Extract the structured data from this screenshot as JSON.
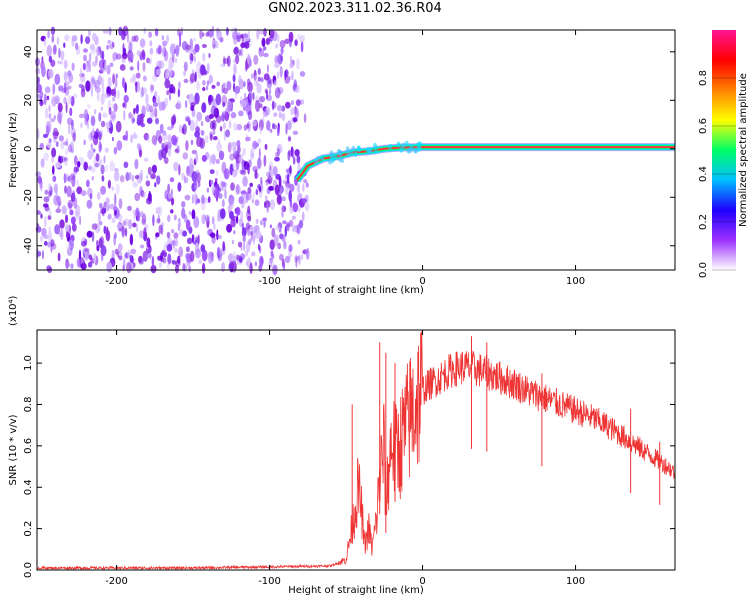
{
  "title": "GN02.2023.311.02.36.R04",
  "chart_data": [
    {
      "type": "heatmap",
      "panel": "spectrogram",
      "xlabel": "Height of straight line (km)",
      "ylabel": "Frequency (Hz)",
      "xlim": [
        -252,
        165
      ],
      "ylim": [
        -50,
        49
      ],
      "xticks": [
        -200,
        -100,
        0,
        100
      ],
      "yticks": [
        -40,
        -20,
        0,
        20,
        40
      ],
      "colorbar": {
        "label": "Normalized spectral amplitude",
        "range": [
          0,
          1
        ],
        "ticks": [
          "0.0",
          "0.2",
          "0.4",
          "0.6",
          "0.8"
        ],
        "colors": [
          "#ffffff",
          "#9b30ff",
          "#1e00ff",
          "#00bfff",
          "#00ff66",
          "#ffff00",
          "#ff8000",
          "#ff0000",
          "#ff1493"
        ]
      },
      "noise_region_x": [
        -252,
        -80
      ],
      "trace": {
        "x": [
          -82,
          -75,
          -65,
          -55,
          -45,
          -35,
          -25,
          -15,
          -5,
          0,
          50,
          100,
          165
        ],
        "y": [
          -13,
          -7,
          -4,
          -3,
          -1.5,
          -1,
          0,
          0.5,
          0.6,
          0.7,
          0.7,
          0.7,
          0.7
        ]
      }
    },
    {
      "type": "line",
      "panel": "snr",
      "xlabel": "Height of straight line (km)",
      "ylabel": "SNR (10 * v/v)",
      "y_scale_label": "(x10⁴)",
      "xlim": [
        -252,
        165
      ],
      "ylim": [
        0,
        1.16
      ],
      "xticks": [
        -200,
        -100,
        0,
        100
      ],
      "yticks": [
        "0.0",
        "0.2",
        "0.4",
        "0.6",
        "0.8",
        "1.0"
      ],
      "series": [
        {
          "color": "#ee3333",
          "x": [
            -252,
            -200,
            -150,
            -100,
            -60,
            -50,
            -45,
            -42,
            -40,
            -38,
            -35,
            -33,
            -30,
            -28,
            -25,
            -24,
            -22,
            -20,
            -18,
            -15,
            -10,
            -5,
            0,
            5,
            10,
            15,
            20,
            25,
            30,
            35,
            40,
            50,
            60,
            70,
            80,
            90,
            100,
            110,
            120,
            130,
            140,
            150,
            160,
            165
          ],
          "y": [
            0.01,
            0.01,
            0.01,
            0.015,
            0.02,
            0.05,
            0.25,
            0.4,
            0.3,
            0.12,
            0.2,
            0.1,
            0.25,
            0.45,
            0.6,
            0.3,
            0.5,
            0.65,
            0.55,
            0.6,
            0.7,
            0.8,
            0.87,
            0.9,
            0.92,
            0.95,
            0.97,
            0.98,
            0.98,
            0.97,
            0.96,
            0.93,
            0.9,
            0.86,
            0.83,
            0.8,
            0.77,
            0.74,
            0.7,
            0.65,
            0.6,
            0.55,
            0.5,
            0.47
          ]
        }
      ],
      "spikes": [
        {
          "x": -46,
          "y": 0.8
        },
        {
          "x": -28,
          "y": 1.1
        },
        {
          "x": -24,
          "y": 1.05
        },
        {
          "x": -18,
          "y": 1.0
        },
        {
          "x": 32,
          "y": 1.13
        },
        {
          "x": 42,
          "y": 1.1
        },
        {
          "x": 78,
          "y": 0.95
        },
        {
          "x": 136,
          "y": 0.78
        },
        {
          "x": 155,
          "y": 0.62
        }
      ]
    }
  ]
}
